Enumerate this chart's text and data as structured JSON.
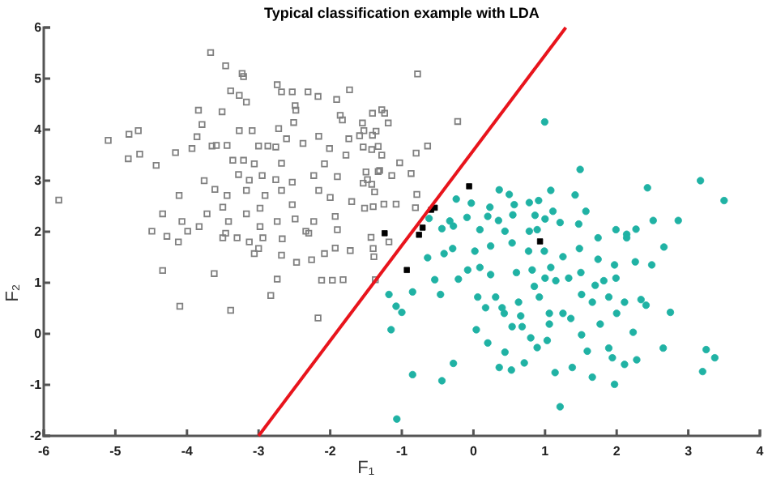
{
  "chart_data": {
    "type": "scatter",
    "title": "Typical classification example with LDA",
    "xlabel": "F₁",
    "ylabel": "F₂",
    "xlim": [
      -6,
      4
    ],
    "ylim": [
      -2,
      6
    ],
    "xticks": [
      -6,
      -5,
      -4,
      -3,
      -2,
      -1,
      0,
      1,
      2,
      3,
      4
    ],
    "yticks": [
      -2,
      -1,
      0,
      1,
      2,
      3,
      4,
      5,
      6
    ],
    "grid": false,
    "series": [
      {
        "marker": "square",
        "color": "#808080",
        "x": [
          -3.67,
          -3.46,
          -3.23,
          -3.21,
          -2.74,
          -2.68,
          -2.53,
          -2.31,
          -1.73,
          -3.39,
          -3.27,
          -3.17,
          -2.17,
          -1.91,
          -3.51,
          -3.84,
          -2.49,
          -2.48,
          -1.86,
          -1.83,
          -1.55,
          -1.24,
          -3.79,
          -2.72,
          -3.27,
          -3.09,
          -2.51,
          -5.1,
          -4.81,
          -4.68,
          -4.82,
          -4.66,
          -4.43,
          -4.16,
          -3.93,
          -3.86,
          -3.65,
          -3.59,
          -3.44,
          -3.36,
          -3.21,
          -3.0,
          -2.87,
          -2.76,
          -2.61,
          -2.38,
          -2.16,
          -2.01,
          -1.74,
          -1.59,
          -1.41,
          -1.33,
          -1.78,
          -2.08,
          -2.68,
          -3.06,
          -3.28,
          -3.13,
          -2.95,
          -2.76,
          -2.53,
          -2.23,
          -1.9,
          -1.48,
          -1.33,
          -3.76,
          -3.61,
          -3.44,
          -3.17,
          -2.91,
          -2.68,
          -2.53,
          -2.16,
          -2.0,
          -1.7,
          -1.4,
          -4.11,
          -4.34,
          -3.72,
          -3.5,
          -3.17,
          -2.98,
          -2.74,
          -2.49,
          -2.23,
          -1.93,
          -1.52,
          -5.79,
          -4.07,
          -3.83,
          -3.42,
          -2.98,
          -2.3,
          -1.9,
          -4.49,
          -4.28,
          -4.12,
          -3.99,
          -3.5,
          -3.46,
          -3.3,
          -3.13,
          -3.06,
          -3.0,
          -2.94,
          -2.67,
          -2.68,
          -2.47,
          -2.34,
          -2.26,
          -2.08,
          -1.93,
          -1.72,
          -1.4,
          -1.39,
          -4.34,
          -3.62,
          -2.74,
          -2.12,
          -1.97,
          -1.82,
          -2.83,
          -4.1,
          -3.39,
          -2.17,
          -1.37,
          -1.18,
          -0.78,
          -0.22,
          -1.41,
          -1.28,
          -1.19,
          -1.53,
          -1.36,
          -1.54,
          -1.42,
          -1.28,
          -0.64,
          -0.8,
          -1.03,
          -0.87,
          -1.14,
          -1.31,
          -1.5,
          -1.54,
          -1.42,
          -1.38,
          -0.79,
          -1.25,
          -1.08,
          -0.81,
          -1.43
        ],
        "values": [
          5.51,
          5.25,
          5.1,
          5.04,
          4.88,
          4.74,
          4.74,
          4.74,
          4.78,
          4.76,
          4.67,
          4.54,
          4.65,
          4.59,
          4.35,
          4.38,
          4.47,
          4.38,
          4.28,
          4.19,
          4.13,
          4.32,
          4.1,
          4.02,
          3.98,
          3.98,
          4.14,
          3.79,
          3.91,
          3.98,
          3.43,
          3.52,
          3.3,
          3.55,
          3.63,
          3.86,
          3.68,
          3.69,
          3.69,
          3.4,
          3.4,
          3.68,
          3.68,
          3.66,
          3.82,
          3.73,
          3.87,
          3.63,
          3.82,
          3.88,
          3.89,
          3.67,
          3.5,
          3.33,
          3.34,
          3.33,
          3.12,
          3.01,
          3.1,
          3.02,
          2.97,
          3.1,
          3.08,
          3.02,
          3.18,
          3.0,
          2.83,
          2.71,
          2.81,
          2.71,
          2.81,
          2.53,
          2.81,
          2.67,
          2.59,
          2.49,
          2.71,
          2.35,
          2.35,
          2.48,
          2.35,
          2.46,
          2.2,
          2.25,
          2.2,
          2.3,
          2.46,
          2.62,
          2.2,
          2.1,
          2.2,
          2.1,
          1.97,
          2.04,
          2.01,
          1.91,
          1.8,
          2.01,
          1.88,
          1.97,
          1.88,
          1.8,
          1.57,
          1.67,
          1.88,
          1.86,
          1.54,
          1.4,
          2.01,
          1.45,
          1.57,
          1.68,
          1.63,
          1.67,
          1.51,
          1.24,
          1.18,
          1.07,
          1.05,
          1.05,
          1.06,
          0.75,
          0.54,
          0.46,
          0.31,
          1.06,
          1.8,
          5.09,
          4.16,
          4.32,
          4.39,
          4.13,
          3.98,
          3.97,
          3.66,
          3.61,
          3.5,
          3.68,
          3.54,
          3.35,
          3.14,
          3.1,
          3.2,
          3.17,
          2.95,
          2.93,
          2.78,
          2.73,
          2.54,
          2.54,
          2.47,
          1.89
        ]
      },
      {
        "marker": "circle",
        "color": "#20b2a4",
        "x": [
          0.995,
          1.49,
          2.43,
          3.17,
          3.5,
          0.36,
          0.5,
          1.08,
          1.42,
          -0.24,
          -0.03,
          0.23,
          0.57,
          0.78,
          0.91,
          1.11,
          1.57,
          -0.62,
          -0.33,
          -0.09,
          0.2,
          0.35,
          0.55,
          0.86,
          1.0,
          1.21,
          1.47,
          -0.44,
          -0.28,
          0.09,
          0.44,
          0.78,
          0.89,
          1.99,
          2.14,
          2.27,
          2.51,
          2.86,
          1.74,
          -1.18,
          -1.08,
          -1.0,
          -1.15,
          -0.85,
          -0.64,
          -0.54,
          -0.46,
          -0.41,
          -0.29,
          -0.21,
          -0.08,
          0.04,
          0.06,
          0.09,
          0.2,
          0.24,
          0.31,
          0.36,
          0.44,
          0.54,
          0.6,
          0.68,
          0.71,
          0.8,
          0.92,
          0.89,
          1.03,
          1.06,
          1.14,
          1.21,
          1.25,
          1.38,
          1.51,
          1.59,
          1.66,
          1.66,
          1.82,
          1.89,
          1.94,
          1.97,
          2.0,
          2.11,
          2.23,
          2.28,
          2.34,
          2.41,
          2.49,
          2.65,
          2.75,
          2.66,
          3.2,
          3.25,
          3.37,
          -1.07,
          -0.85,
          -0.44,
          -0.28,
          0.53,
          0.4,
          0.63,
          0.85,
          1.0,
          1.15,
          1.33,
          1.51,
          1.7,
          1.89,
          2.11,
          2.26,
          1.97,
          1.74,
          1.48,
          1.25,
          0.99,
          0.77,
          0.54,
          0.24,
          0.02,
          0.17,
          0.43,
          0.66,
          1.06,
          1.36,
          1.77,
          0.82,
          1.08,
          1.5,
          1.99,
          2.14
        ],
        "values": [
          4.15,
          3.22,
          2.86,
          3.0,
          2.61,
          2.82,
          2.73,
          2.81,
          2.72,
          2.64,
          2.56,
          2.48,
          2.53,
          2.57,
          2.61,
          2.4,
          2.4,
          2.26,
          2.21,
          2.28,
          2.3,
          2.22,
          2.33,
          2.32,
          2.25,
          2.18,
          2.15,
          2.06,
          2.11,
          2.04,
          2.01,
          2.01,
          2.04,
          2.04,
          1.95,
          2.05,
          2.22,
          2.22,
          1.88,
          0.77,
          0.54,
          0.42,
          0.08,
          0.82,
          1.49,
          1.06,
          0.77,
          1.57,
          1.67,
          1.07,
          1.25,
          0.08,
          0.72,
          1.3,
          -0.18,
          1.16,
          0.72,
          -0.66,
          -0.36,
          0.14,
          1.2,
          0.14,
          -0.57,
          -0.08,
          0.72,
          -0.27,
          -0.13,
          0.4,
          -0.76,
          -1.43,
          0.4,
          -0.66,
          -0.02,
          -0.34,
          0.62,
          -0.85,
          1.04,
          -0.28,
          -0.47,
          -0.99,
          0.4,
          -0.6,
          0.03,
          -0.51,
          0.67,
          0.56,
          1.35,
          -0.28,
          0.42,
          1.7,
          -0.74,
          -0.31,
          -0.47,
          -1.67,
          -0.8,
          -0.92,
          -0.58,
          -0.71,
          0.51,
          0.62,
          0.93,
          1.09,
          1.04,
          1.09,
          0.77,
          0.95,
          0.72,
          0.62,
          1.41,
          1.35,
          1.46,
          1.67,
          1.51,
          1.62,
          1.62,
          1.78,
          1.72,
          1.62,
          0.51,
          0.4,
          0.35,
          0.19,
          0.3,
          0.19,
          1.25,
          1.3,
          1.2,
          1.09,
          1.88
        ]
      },
      {
        "marker": "square",
        "color": "#000000",
        "x": [
          -0.06,
          -0.54,
          -0.59,
          -0.71,
          -0.76,
          -1.24,
          -0.93,
          0.93
        ],
        "values": [
          2.89,
          2.47,
          2.43,
          2.08,
          1.94,
          1.97,
          1.25,
          1.81
        ]
      },
      {
        "type": "line",
        "color": "#e8141c",
        "line_style": "solid",
        "marker": "none",
        "x": [
          -3,
          1.29
        ],
        "values": [
          -2,
          6
        ]
      }
    ]
  }
}
